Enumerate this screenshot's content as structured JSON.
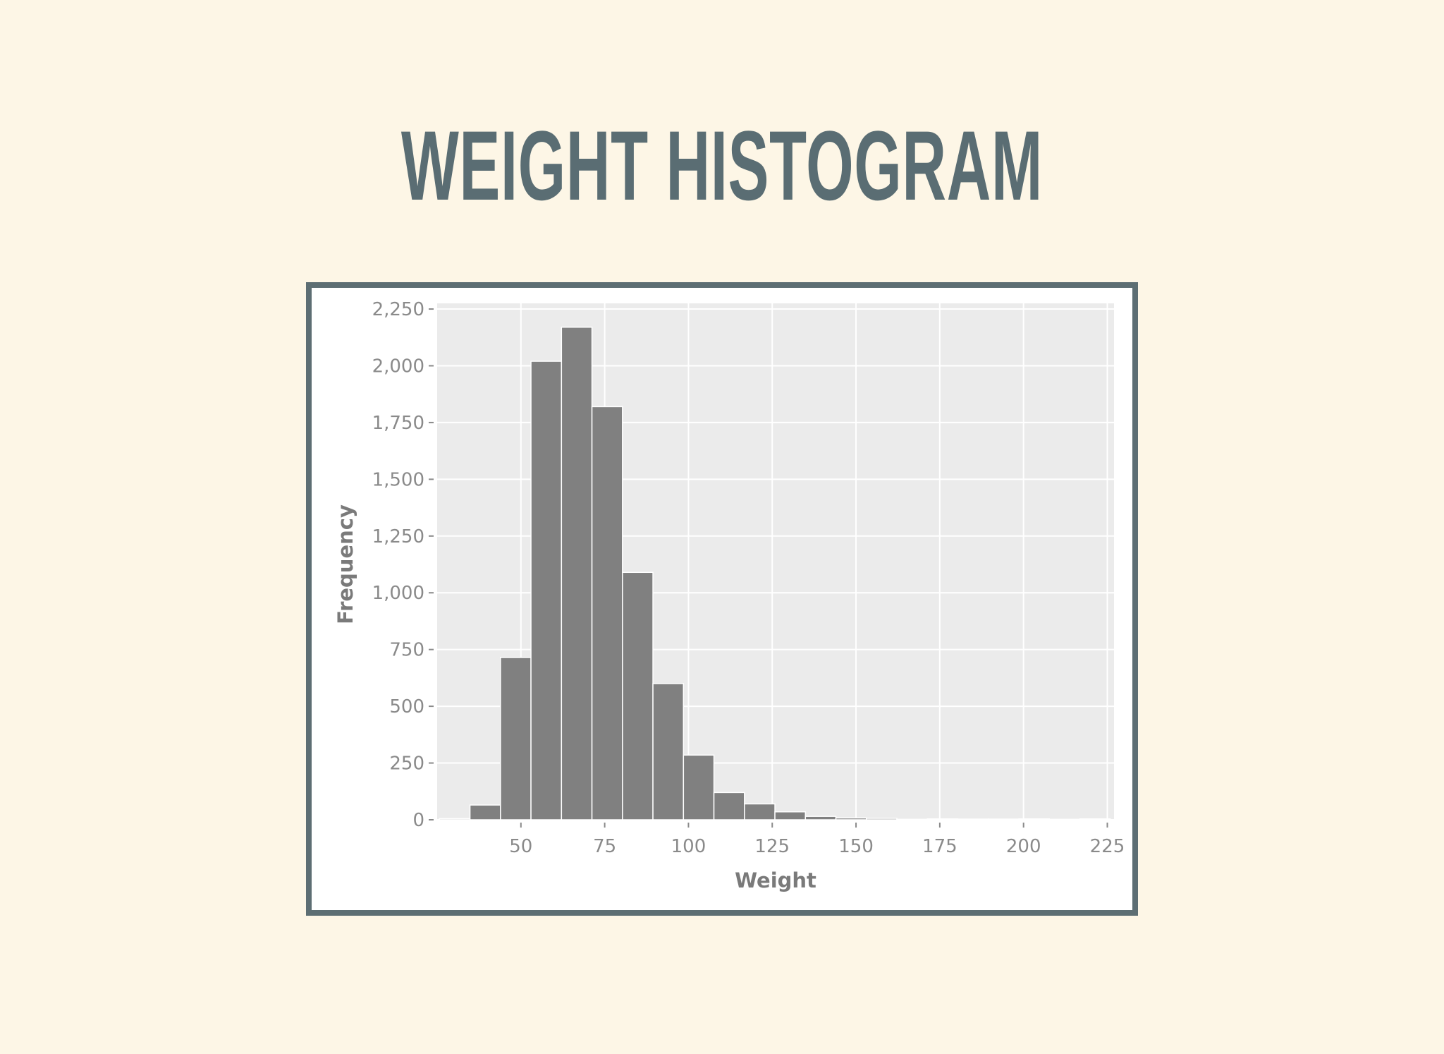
{
  "slide": {
    "title": "WEIGHT HISTOGRAM"
  },
  "colors": {
    "background": "#fdf6e6",
    "title": "#5a6d73",
    "frame": "#5d6e73",
    "bar": "#808080",
    "panel": "#ebebeb",
    "grid": "#ffffff"
  },
  "chart_data": {
    "type": "bar",
    "histogram": true,
    "xlabel": "Weight",
    "ylabel": "Frequency",
    "xlim": [
      25,
      227
    ],
    "ylim": [
      0,
      2275
    ],
    "bin_width": 9.1,
    "xticks": [
      {
        "value": 50,
        "label": "50"
      },
      {
        "value": 75,
        "label": "75"
      },
      {
        "value": 100,
        "label": "100"
      },
      {
        "value": 125,
        "label": "125"
      },
      {
        "value": 150,
        "label": "150"
      },
      {
        "value": 175,
        "label": "175"
      },
      {
        "value": 200,
        "label": "200"
      },
      {
        "value": 225,
        "label": "225"
      }
    ],
    "yticks": [
      {
        "value": 0,
        "label": "0"
      },
      {
        "value": 250,
        "label": "250"
      },
      {
        "value": 500,
        "label": "500"
      },
      {
        "value": 750,
        "label": "750"
      },
      {
        "value": 1000,
        "label": "1,000"
      },
      {
        "value": 1250,
        "label": "1,250"
      },
      {
        "value": 1500,
        "label": "1,500"
      },
      {
        "value": 1750,
        "label": "1,750"
      },
      {
        "value": 2000,
        "label": "2,000"
      },
      {
        "value": 2250,
        "label": "2,250"
      }
    ],
    "bins": [
      {
        "start": 25.7,
        "end": 34.8,
        "count": 5
      },
      {
        "start": 34.8,
        "end": 43.9,
        "count": 65
      },
      {
        "start": 43.9,
        "end": 53.0,
        "count": 715
      },
      {
        "start": 53.0,
        "end": 62.1,
        "count": 2020
      },
      {
        "start": 62.1,
        "end": 71.2,
        "count": 2170
      },
      {
        "start": 71.2,
        "end": 80.3,
        "count": 1820
      },
      {
        "start": 80.3,
        "end": 89.4,
        "count": 1090
      },
      {
        "start": 89.4,
        "end": 98.5,
        "count": 600
      },
      {
        "start": 98.5,
        "end": 107.6,
        "count": 285
      },
      {
        "start": 107.6,
        "end": 116.7,
        "count": 120
      },
      {
        "start": 116.7,
        "end": 125.8,
        "count": 70
      },
      {
        "start": 125.8,
        "end": 134.9,
        "count": 35
      },
      {
        "start": 134.9,
        "end": 144.0,
        "count": 15
      },
      {
        "start": 144.0,
        "end": 153.1,
        "count": 8
      },
      {
        "start": 153.1,
        "end": 162.2,
        "count": 6
      },
      {
        "start": 162.2,
        "end": 171.3,
        "count": 2
      },
      {
        "start": 171.3,
        "end": 180.4,
        "count": 4
      },
      {
        "start": 180.4,
        "end": 189.5,
        "count": 3
      },
      {
        "start": 189.5,
        "end": 198.6,
        "count": 3
      },
      {
        "start": 198.6,
        "end": 207.7,
        "count": 4
      },
      {
        "start": 207.7,
        "end": 216.8,
        "count": 2
      },
      {
        "start": 216.8,
        "end": 225.9,
        "count": 4
      }
    ]
  }
}
